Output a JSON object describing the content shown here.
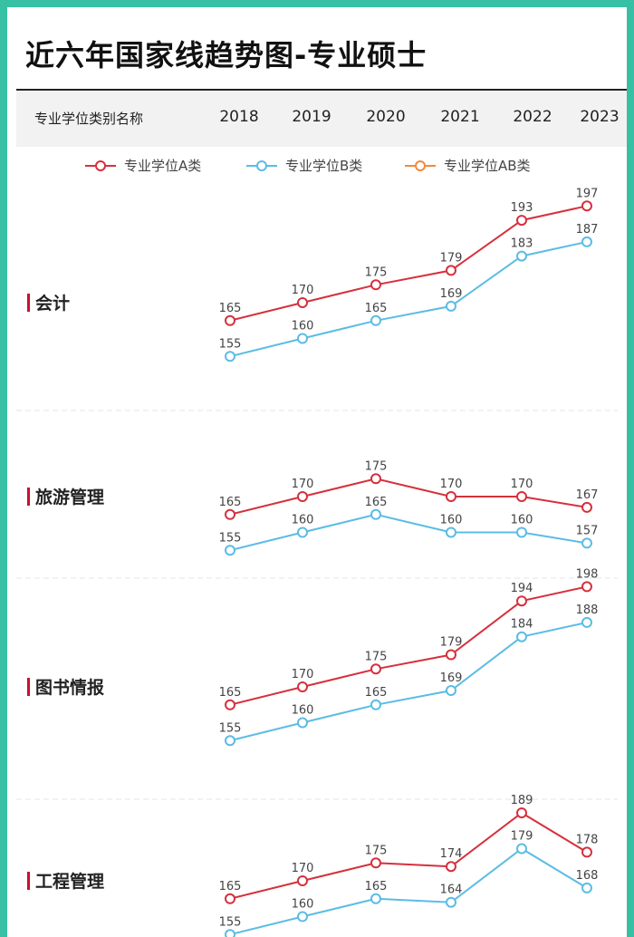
{
  "page": {
    "title": "近六年国家线趋势图-专业硕士",
    "header_label": "专业学位类别名称",
    "years": [
      "2018",
      "2019",
      "2020",
      "2021",
      "2022",
      "2023"
    ]
  },
  "colors": {
    "background": "#37c0a4",
    "series_a": "#d6303c",
    "series_b": "#5bbce4",
    "series_ab": "#f08a3c",
    "row_marker": "#c8102e"
  },
  "chart_data": {
    "type": "line",
    "x": [
      "2018",
      "2019",
      "2020",
      "2021",
      "2022",
      "2023"
    ],
    "legend": [
      {
        "name": "专业学位A类",
        "color": "#d6303c"
      },
      {
        "name": "专业学位B类",
        "color": "#5bbce4"
      },
      {
        "name": "专业学位AB类",
        "color": "#f08a3c"
      }
    ],
    "legend_placement": "top-center",
    "panels": [
      {
        "category": "会计",
        "series": [
          {
            "name": "专业学位A类",
            "values": [
              165,
              170,
              175,
              179,
              193,
              197
            ]
          },
          {
            "name": "专业学位B类",
            "values": [
              155,
              160,
              165,
              169,
              183,
              187
            ]
          }
        ]
      },
      {
        "category": "旅游管理",
        "series": [
          {
            "name": "专业学位A类",
            "values": [
              165,
              170,
              175,
              170,
              170,
              167
            ]
          },
          {
            "name": "专业学位B类",
            "values": [
              155,
              160,
              165,
              160,
              160,
              157
            ]
          }
        ]
      },
      {
        "category": "图书情报",
        "series": [
          {
            "name": "专业学位A类",
            "values": [
              165,
              170,
              175,
              179,
              194,
              198
            ]
          },
          {
            "name": "专业学位B类",
            "values": [
              155,
              160,
              165,
              169,
              184,
              188
            ]
          }
        ]
      },
      {
        "category": "工程管理",
        "series": [
          {
            "name": "专业学位A类",
            "values": [
              165,
              170,
              175,
              174,
              189,
              178
            ]
          },
          {
            "name": "专业学位B类",
            "values": [
              155,
              160,
              165,
              164,
              179,
              168
            ]
          }
        ]
      }
    ]
  }
}
